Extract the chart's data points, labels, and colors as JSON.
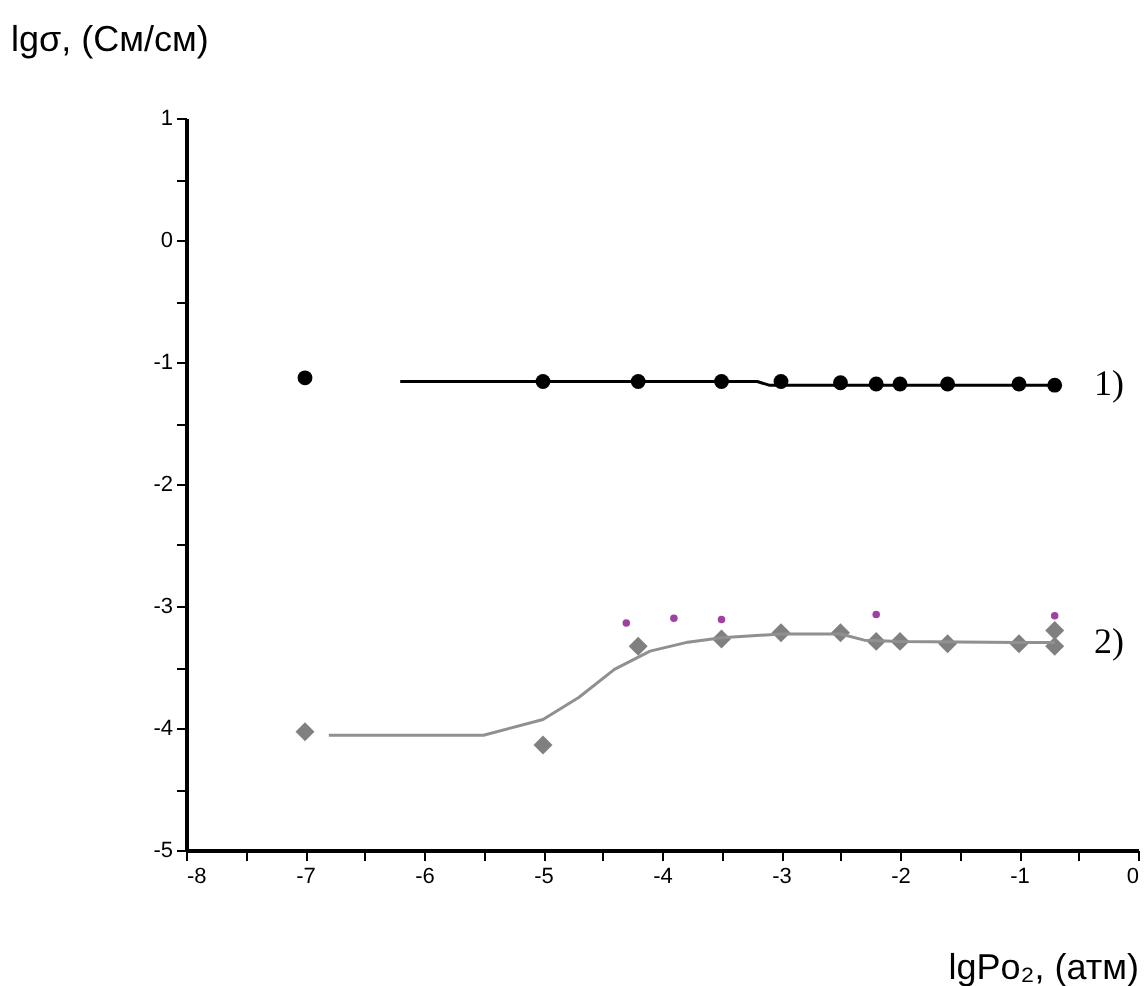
{
  "chart_data": {
    "type": "scatter",
    "xlabel": "lgPo₂, (атм)",
    "ylabel": "lgσ, (См/см)",
    "xlim": [
      -8,
      0
    ],
    "ylim": [
      -5,
      1
    ],
    "xticks": [
      -8,
      {
        "value": -7.5,
        "label": null
      },
      -7,
      {
        "value": -6.5,
        "label": null
      },
      -6,
      {
        "value": -5.5,
        "label": null
      },
      -5,
      {
        "value": -4.5,
        "label": null
      },
      -4,
      {
        "value": -3.5,
        "label": null
      },
      -3,
      {
        "value": -2.5,
        "label": null
      },
      -2,
      {
        "value": -1.5,
        "label": null
      },
      -1,
      {
        "value": -0.5,
        "label": null
      },
      0
    ],
    "yticks": [
      -5,
      {
        "value": -4.5,
        "label": null
      },
      -4,
      {
        "value": -3.5,
        "label": null
      },
      -3,
      {
        "value": -2.5,
        "label": null
      },
      -2,
      {
        "value": -1.5,
        "label": null
      },
      -1,
      {
        "value": -0.5,
        "label": null
      },
      0,
      {
        "value": 0.5,
        "label": null
      },
      1
    ],
    "grid": false,
    "series": [
      {
        "marker": "circle",
        "color": "#000000",
        "x": [
          -7,
          -5,
          -4.2,
          -3.5,
          -3,
          -2.5,
          -2.2,
          -2,
          -1.6,
          -1,
          -0.7
        ],
        "values": [
          -1.13,
          -1.16,
          -1.16,
          -1.16,
          -1.16,
          -1.17,
          -1.18,
          -1.18,
          -1.18,
          -1.18,
          -1.19
        ]
      },
      {
        "type": "line",
        "color": "#000000",
        "x": [
          -6.2,
          -3.2,
          -3.1,
          -0.7
        ],
        "values": [
          -1.16,
          -1.16,
          -1.19,
          -1.19
        ]
      },
      {
        "marker": "diamond",
        "color": "#808080",
        "x": [
          -7,
          -5,
          -4.2,
          -3.5,
          -3,
          -2.5,
          -2.2,
          -2,
          -1.6,
          -1,
          -0.7,
          -0.7
        ],
        "values": [
          -4.03,
          -4.14,
          -3.33,
          -3.27,
          -3.22,
          -3.22,
          -3.29,
          -3.29,
          -3.31,
          -3.31,
          -3.33,
          -3.2
        ]
      },
      {
        "type": "line",
        "color": "#909090",
        "x": [
          -6.8,
          -6,
          -5.5,
          -5,
          -4.7,
          -4.4,
          -4.1,
          -3.8,
          -3.5,
          -3,
          -2.5,
          -2.3,
          -2,
          -1,
          -0.7
        ],
        "values": [
          -4.06,
          -4.06,
          -4.06,
          -3.93,
          -3.75,
          -3.52,
          -3.37,
          -3.3,
          -3.26,
          -3.23,
          -3.23,
          -3.28,
          -3.29,
          -3.3,
          -3.3
        ]
      },
      {
        "marker": "circle",
        "color": "#a040a0",
        "x": [
          -4.3,
          -3.9,
          -3.5,
          -2.2,
          -0.7
        ],
        "values": [
          -3.14,
          -3.1,
          -3.11,
          -3.07,
          -3.08
        ]
      }
    ],
    "annotations": [
      "1)",
      "2)"
    ]
  }
}
